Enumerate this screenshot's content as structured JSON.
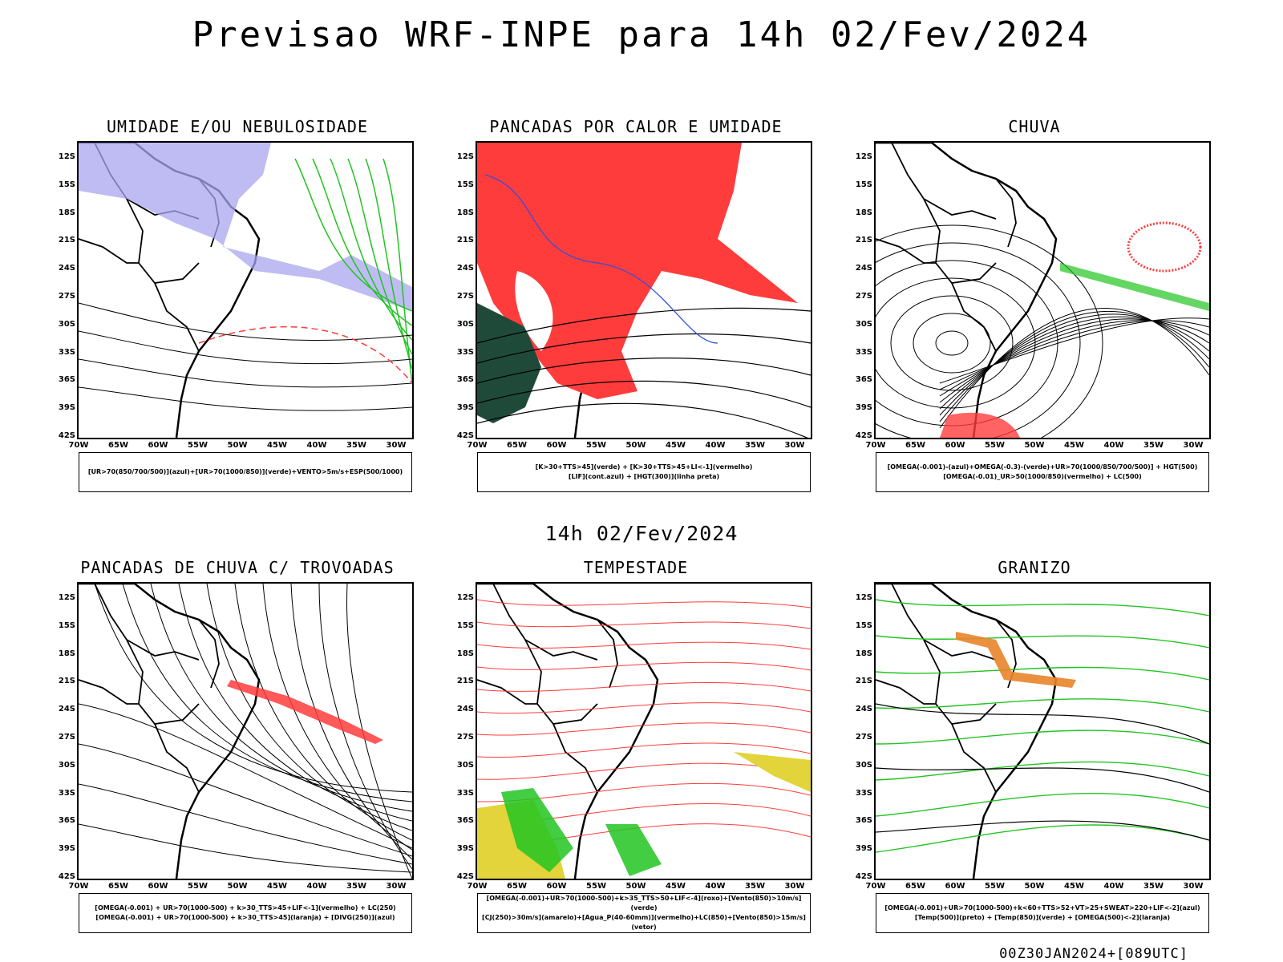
{
  "main_title": "Previsao WRF-INPE  para 14h 02/Fev/2024",
  "mid_title": "14h 02/Fev/2024",
  "footer": "00Z30JAN2024+[089UTC]",
  "lat_labels": [
    "12S",
    "15S",
    "18S",
    "21S",
    "24S",
    "27S",
    "30S",
    "33S",
    "36S",
    "39S",
    "42S"
  ],
  "lon_labels": [
    "70W",
    "65W",
    "60W",
    "55W",
    "50W",
    "45W",
    "40W",
    "35W",
    "30W"
  ],
  "panels": [
    {
      "title": "UMIDADE E/OU NEBULOSIDADE",
      "legend1": "[UR>70(850/700/500)](azul)+[UR>70(1000/850)](verde)+VENTO>5m/s+ESP(500/1000)",
      "legend2": ""
    },
    {
      "title": "PANCADAS POR CALOR E UMIDADE",
      "legend1": "[K>30+TTS>45](verde) + [K>30+TTS>45+LI<-1](vermelho)",
      "legend2": "[LIF](cont.azul) + [HGT(300)](linha preta)"
    },
    {
      "title": "CHUVA",
      "legend1": "[OMEGA(-0.001)-(azul)+OMEGA(-0.3)-(verde)+UR>70(1000/850/700/500)] + HGT(500)",
      "legend2": "[OMEGA(-0.01)_UR>50(1000/850)(vermelho) + LC(500)"
    },
    {
      "title": "PANCADAS DE CHUVA C/ TROVOADAS",
      "legend1": "[OMEGA(-0.001) + UR>70(1000-500) + k>30_TTS>45+LIF<-1](vermelho) + LC(250)",
      "legend2": "[OMEGA(-0.001) + UR>70(1000-500) + k>30_TTS>45](laranja) + [DIVG(250)](azul)"
    },
    {
      "title": "TEMPESTADE",
      "legend1": "[OMEGA(-0.001)+UR>70(1000-500)+k>35_TTS>50+LIF<-4](roxo)+[Vento(850)>10m/s](verde)",
      "legend2": "[CJ(250)>30m/s](amarelo)+[Agua_P(40-60mm)](vermelho)+LC(850)+[Vento(850)>15m/s](vetor)"
    },
    {
      "title": "GRANIZO",
      "legend1": "[OMEGA(-0.001)+UR>70(1000-500)+k<60+TTS>52+VT>25+SWEAT>220+LIF<-2](azul)",
      "legend2": "[Temp(500)](preto) + [Temp(850)](verde) + [OMEGA(500)<-2](laranja)"
    }
  ],
  "colors": {
    "red": "#ff3c3c",
    "green": "#22c422",
    "blue": "#3050e0",
    "lavender": "#a9a6ef",
    "darkgreen": "#1f4a3a",
    "yellow": "#e2d43a",
    "orange": "#e8842a"
  }
}
